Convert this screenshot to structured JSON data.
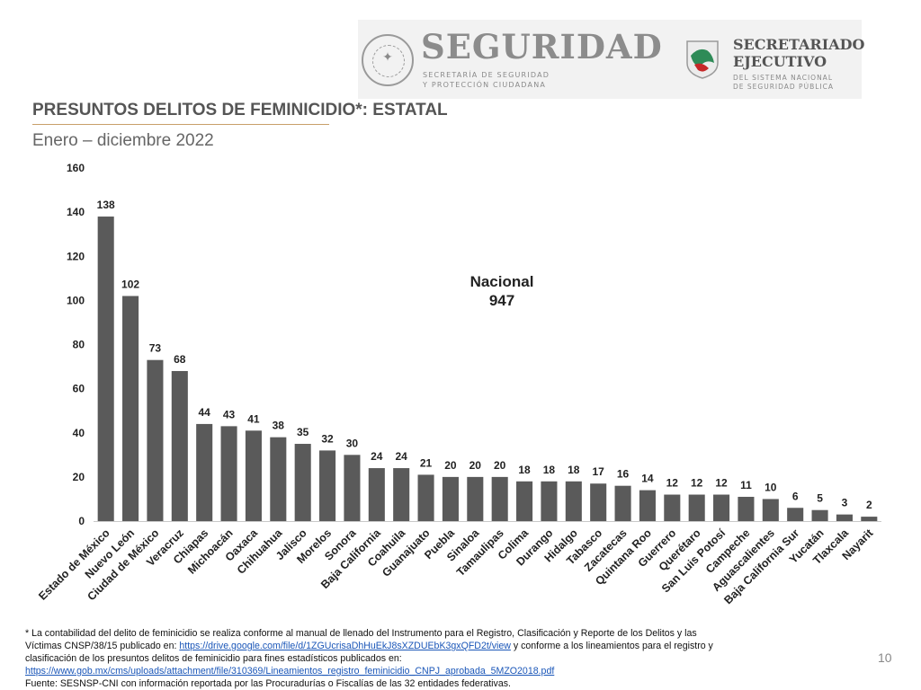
{
  "header": {
    "brand_title": "SEGURIDAD",
    "brand_sub_line1": "SECRETARÍA DE SEGURIDAD",
    "brand_sub_line2": "Y PROTECCIÓN CIUDADANA",
    "se_title_line1": "SECRETARIADO",
    "se_title_line2": "EJECUTIVO",
    "se_sub_line1": "DEL SISTEMA NACIONAL",
    "se_sub_line2": "DE SEGURIDAD PÚBLICA"
  },
  "title": "PRESUNTOS DELITOS DE FEMINICIDIO*: ESTATAL",
  "subtitle": "Enero – diciembre 2022",
  "nacional": {
    "label": "Nacional",
    "value": "947"
  },
  "colors": {
    "bar": "#5a5a5a",
    "accent_rule": "#c8a06a",
    "link": "#1a56b8"
  },
  "chart_data": {
    "type": "bar",
    "title": "PRESUNTOS DELITOS DE FEMINICIDIO*: ESTATAL",
    "subtitle": "Enero – diciembre 2022",
    "xlabel": "",
    "ylabel": "",
    "ylim": [
      0,
      160
    ],
    "yticks": [
      0,
      20,
      40,
      60,
      80,
      100,
      120,
      140,
      160
    ],
    "grid": false,
    "categories": [
      "Estado de México",
      "Nuevo León",
      "Ciudad de México",
      "Veracruz",
      "Chiapas",
      "Michoacán",
      "Oaxaca",
      "Chihuahua",
      "Jalisco",
      "Morelos",
      "Sonora",
      "Baja California",
      "Coahuila",
      "Guanajuato",
      "Puebla",
      "Sinaloa",
      "Tamaulipas",
      "Colima",
      "Durango",
      "Hidalgo",
      "Tabasco",
      "Zacatecas",
      "Quintana Roo",
      "Guerrero",
      "Querétaro",
      "San Luis Potosí",
      "Campeche",
      "Aguascalientes",
      "Baja California Sur",
      "Yucatán",
      "Tlaxcala",
      "Nayarit"
    ],
    "values": [
      138,
      102,
      73,
      68,
      44,
      43,
      41,
      38,
      35,
      32,
      30,
      24,
      24,
      21,
      20,
      20,
      20,
      18,
      18,
      18,
      17,
      16,
      14,
      12,
      12,
      12,
      11,
      10,
      6,
      5,
      3,
      2
    ]
  },
  "footnote": {
    "line1_text": "* La contabilidad del delito de feminicidio se realiza conforme al manual de llenado del Instrumento para el Registro, Clasificación y Reporte de los Delitos y las",
    "line2_prefix": "Víctimas CNSP/38/15 publicado en: ",
    "link1": "https://drive.google.com/file/d/1ZGUcrisaDhHuEkJ8sXZDUEbK3gxQFD2t/view",
    "line2_suffix": " y conforme a los lineamientos para el registro y",
    "line3_text": "clasificación de los presuntos delitos de feminicidio para fines estadísticos publicados en:",
    "link2": "https://www.gob.mx/cms/uploads/attachment/file/310369/Lineamientos_registro_feminicidio_CNPJ_aprobada_5MZO2018.pdf",
    "source": "Fuente: SESNSP-CNI con información reportada por las Procuradurías o Fiscalías de las 32 entidades federativas."
  },
  "page_number": "10"
}
